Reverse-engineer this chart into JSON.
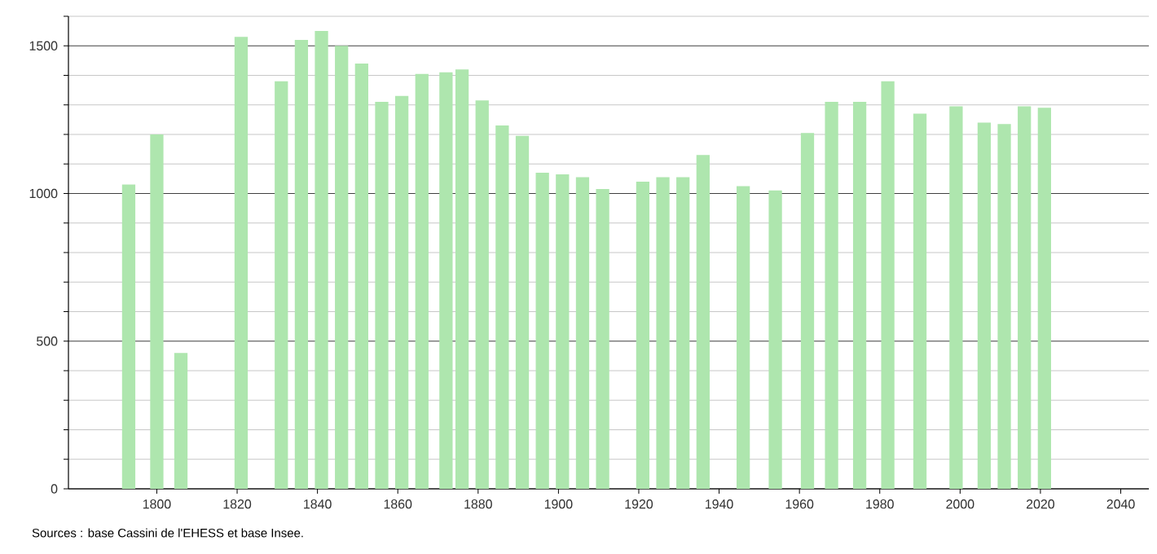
{
  "chart_data": {
    "type": "bar",
    "color": "#aee6ae",
    "x": [
      1793,
      1800,
      1806,
      1821,
      1831,
      1836,
      1841,
      1846,
      1851,
      1856,
      1861,
      1866,
      1872,
      1876,
      1881,
      1886,
      1891,
      1896,
      1901,
      1906,
      1911,
      1921,
      1926,
      1931,
      1936,
      1946,
      1954,
      1962,
      1968,
      1975,
      1982,
      1990,
      1999,
      2006,
      2011,
      2016,
      2021
    ],
    "values": [
      1030,
      1200,
      460,
      1530,
      1380,
      1520,
      1550,
      1500,
      1440,
      1310,
      1330,
      1405,
      1410,
      1420,
      1315,
      1230,
      1195,
      1070,
      1065,
      1055,
      1015,
      1040,
      1055,
      1055,
      1130,
      1025,
      1010,
      1205,
      1310,
      1310,
      1380,
      1270,
      1295,
      1240,
      1235,
      1295,
      1290
    ],
    "xlim": [
      1778,
      2047
    ],
    "ylim": [
      0,
      1600
    ],
    "xticks": [
      1800,
      1820,
      1840,
      1860,
      1880,
      1900,
      1920,
      1940,
      1960,
      1980,
      2000,
      2020,
      2040
    ],
    "yticks": [
      0,
      {
        "value": 100,
        "label": null
      },
      {
        "value": 200,
        "label": null
      },
      {
        "value": 300,
        "label": null
      },
      {
        "value": 400,
        "label": null
      },
      500,
      {
        "value": 600,
        "label": null
      },
      {
        "value": 700,
        "label": null
      },
      {
        "value": 800,
        "label": null
      },
      {
        "value": 900,
        "label": null
      },
      1000,
      {
        "value": 1100,
        "label": null
      },
      {
        "value": 1200,
        "label": null
      },
      {
        "value": 1300,
        "label": null
      },
      {
        "value": 1400,
        "label": null
      },
      1500,
      {
        "value": 1600,
        "label": null
      }
    ],
    "grid": "y",
    "annotations": [
      "Sources : base Cassini de l'EHESS et base Insee."
    ]
  }
}
